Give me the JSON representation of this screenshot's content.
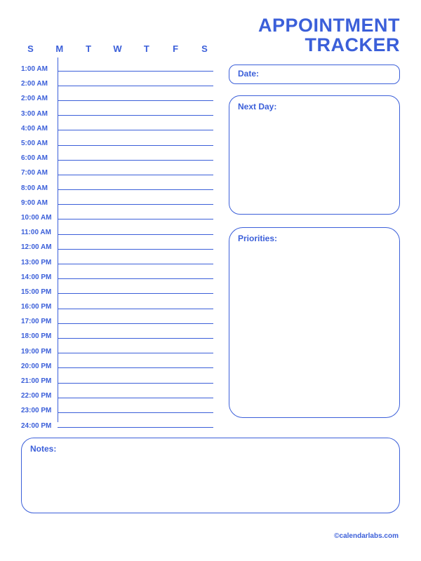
{
  "colors": {
    "accent": "#3b5fd9",
    "background": "#ffffff"
  },
  "title": {
    "line1": "APPOINTMENT",
    "line2": "TRACKER"
  },
  "days": [
    "S",
    "M",
    "T",
    "W",
    "T",
    "F",
    "S"
  ],
  "times": [
    "1:00 AM",
    "2:00 AM",
    "2:00 AM",
    "3:00 AM",
    "4:00 AM",
    "5:00 AM",
    "6:00 AM",
    "7:00 AM",
    "8:00 AM",
    "9:00 AM",
    "10:00 AM",
    "11:00 AM",
    "12:00 AM",
    "13:00 PM",
    "14:00 PM",
    "15:00 PM",
    "16:00 PM",
    "17:00 PM",
    "18:00 PM",
    "19:00 PM",
    "20:00 PM",
    "21:00 PM",
    "22:00 PM",
    "23:00 PM",
    "24:00 PM"
  ],
  "labels": {
    "date": "Date:",
    "nextday": "Next Day:",
    "priorities": "Priorities:",
    "notes": "Notes:"
  },
  "footer": "©calendarlabs.com"
}
